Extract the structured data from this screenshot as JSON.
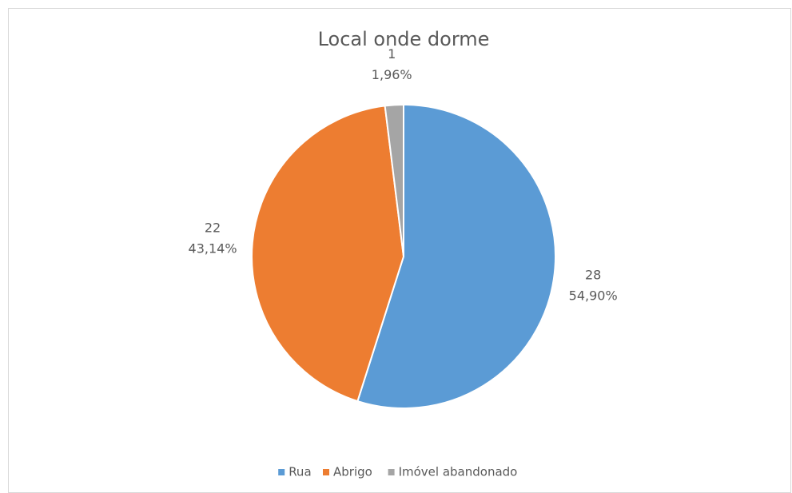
{
  "chart_data": {
    "type": "pie",
    "title": "Local onde dorme",
    "categories": [
      "Rua",
      "Abrigo",
      "Imóvel abandonado"
    ],
    "values": [
      28,
      22,
      1
    ],
    "percentages": [
      54.9,
      43.14,
      1.96
    ],
    "percentage_labels": [
      "54,90%",
      "43,14%",
      "1,96%"
    ],
    "colors": [
      "#5b9bd5",
      "#ed7d31",
      "#a5a5a5"
    ],
    "legend": "bottom"
  }
}
